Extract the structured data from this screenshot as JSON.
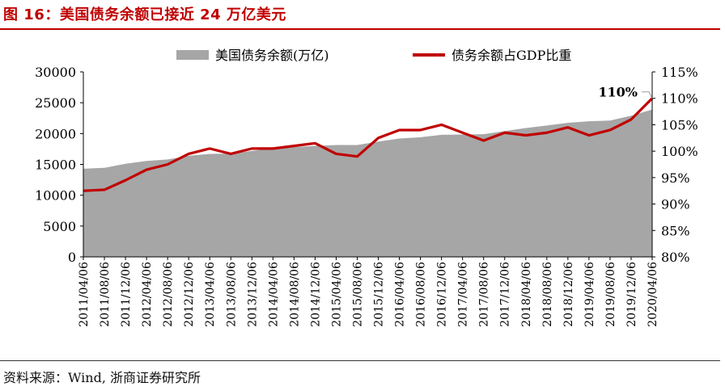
{
  "header": {
    "title": "图 16：美国债务余额已接近 24 万亿美元"
  },
  "footer": {
    "source": "资料来源：Wind, 浙商证券研究所"
  },
  "chart_data": {
    "type": "area+line",
    "title": "图 16：美国债务余额已接近 24 万亿美元",
    "legend_position": "top",
    "grid": false,
    "categories": [
      "2011/04/06",
      "2011/08/06",
      "2011/12/06",
      "2012/04/06",
      "2012/08/06",
      "2012/12/06",
      "2013/04/06",
      "2013/08/06",
      "2013/12/06",
      "2014/04/06",
      "2014/08/06",
      "2014/12/06",
      "2015/04/06",
      "2015/08/06",
      "2015/12/06",
      "2016/04/06",
      "2016/08/06",
      "2016/12/06",
      "2017/04/06",
      "2017/08/06",
      "2017/12/06",
      "2018/04/06",
      "2018/08/06",
      "2018/12/06",
      "2019/04/06",
      "2019/08/06",
      "2019/12/06",
      "2020/04/06"
    ],
    "y_left": {
      "min": 0,
      "max": 30000,
      "ticks": [
        0,
        5000,
        10000,
        15000,
        20000,
        25000,
        30000
      ]
    },
    "y_right": {
      "min": 80,
      "max": 115,
      "unit": "%",
      "ticks": [
        80,
        85,
        90,
        95,
        100,
        105,
        110,
        115
      ]
    },
    "annotations": [
      {
        "text": "110%",
        "series": "债务余额占GDP比重",
        "x_index": 27,
        "value": 110
      }
    ],
    "series": [
      {
        "name": "美国债务余额(万亿)",
        "axis": "left",
        "style": "area",
        "color": "#a6a6a6",
        "values": [
          14300,
          14450,
          15100,
          15550,
          15800,
          16400,
          16700,
          16750,
          17200,
          17600,
          17800,
          18000,
          18150,
          18150,
          18700,
          19200,
          19400,
          19800,
          19850,
          19900,
          20400,
          20900,
          21300,
          21750,
          22000,
          22100,
          22900,
          23900
        ]
      },
      {
        "name": "债务余额占GDP比重",
        "axis": "right",
        "style": "line",
        "color": "#c00000",
        "values": [
          92.5,
          92.7,
          94.5,
          96.5,
          97.5,
          99.5,
          100.5,
          99.5,
          100.5,
          100.5,
          101,
          101.5,
          99.5,
          99,
          102.5,
          104,
          104,
          105,
          103.5,
          102,
          103.5,
          103,
          103.5,
          104.5,
          103,
          104,
          106,
          110
        ]
      }
    ]
  }
}
